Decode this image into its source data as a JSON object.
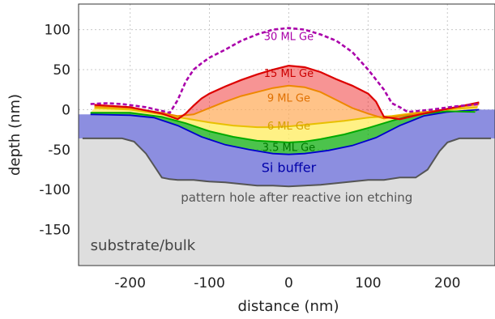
{
  "chart_data": {
    "type": "area",
    "xlabel": "distance (nm)",
    "ylabel": "depth (nm)",
    "xlim": [
      -265,
      260
    ],
    "ylim": [
      -195,
      132
    ],
    "xticks": [
      -200,
      -100,
      0,
      100,
      200
    ],
    "yticks": [
      100,
      50,
      0,
      -50,
      -100,
      -150
    ],
    "grid": true,
    "colors": {
      "substrate": "#dedede",
      "hole": "#555555",
      "si_buffer": "#8c8ee0",
      "ml35": "#00aa00",
      "ml6": "#ffee66",
      "ml9": "#ffaa55",
      "ml15": "#ee1111",
      "ml30": "#aa00aa"
    },
    "series": [
      {
        "name": "pattern hole after reactive ion etching",
        "x": [
          -260,
          -240,
          -210,
          -195,
          -180,
          -170,
          -160,
          -150,
          -140,
          -120,
          -100,
          -80,
          -60,
          -40,
          -20,
          0,
          20,
          40,
          60,
          80,
          100,
          120,
          140,
          160,
          175,
          190,
          200,
          215,
          240,
          255
        ],
        "y": [
          -36,
          -36,
          -36,
          -40,
          -55,
          -70,
          -85,
          -87,
          -88,
          -88,
          -90,
          -91,
          -93,
          -95,
          -95,
          -96,
          -95,
          -94,
          -92,
          -90,
          -88,
          -88,
          -85,
          -85,
          -75,
          -52,
          -41,
          -36,
          -36,
          -36
        ]
      },
      {
        "name": "Si buffer",
        "x": [
          -250,
          -200,
          -170,
          -140,
          -110,
          -80,
          -50,
          -20,
          0,
          20,
          50,
          80,
          110,
          140,
          170,
          200,
          240
        ],
        "y": [
          -6,
          -7,
          -10,
          -20,
          -34,
          -44,
          -50,
          -55,
          -56,
          -55,
          -51,
          -45,
          -35,
          -20,
          -8,
          -3,
          0
        ]
      },
      {
        "name": "3.5 ML Ge",
        "x": [
          -250,
          -200,
          -160,
          -130,
          -100,
          -70,
          -40,
          -20,
          0,
          20,
          40,
          70,
          100,
          130,
          160,
          200,
          235
        ],
        "y": [
          -4,
          -4,
          -9,
          -17,
          -27,
          -34,
          -39,
          -40,
          -41,
          -40,
          -37,
          -31,
          -23,
          -14,
          -6,
          -2,
          -3
        ]
      },
      {
        "name": "6 ML Ge",
        "x": [
          -245,
          -200,
          -160,
          -130,
          -100,
          -70,
          -40,
          -20,
          0,
          20,
          40,
          70,
          100,
          130,
          160,
          200,
          238
        ],
        "y": [
          2,
          0,
          -6,
          -11,
          -16,
          -20,
          -22,
          -22,
          -21,
          -19,
          -17,
          -14,
          -10,
          -8,
          -4,
          0,
          3
        ]
      },
      {
        "name": "9 ML Ge",
        "x": [
          -245,
          -200,
          -160,
          -140,
          -120,
          -100,
          -80,
          -60,
          -40,
          -20,
          0,
          20,
          40,
          60,
          80,
          100,
          120,
          140,
          170,
          200,
          240
        ],
        "y": [
          4,
          2,
          -4,
          -8,
          -6,
          2,
          10,
          17,
          22,
          27,
          30,
          28,
          22,
          12,
          2,
          -5,
          -11,
          -8,
          -4,
          1,
          7
        ]
      },
      {
        "name": "15 ML Ge",
        "x": [
          -245,
          -200,
          -160,
          -140,
          -130,
          -120,
          -110,
          -100,
          -80,
          -60,
          -40,
          -20,
          0,
          20,
          40,
          60,
          80,
          100,
          110,
          120,
          140,
          170,
          200,
          240
        ],
        "y": [
          6,
          3,
          -5,
          -12,
          -5,
          5,
          14,
          20,
          29,
          37,
          44,
          50,
          55,
          53,
          47,
          38,
          30,
          20,
          10,
          -9,
          -12,
          -5,
          1,
          9
        ]
      },
      {
        "name": "30 ML Ge",
        "x": [
          -250,
          -230,
          -210,
          -180,
          -150,
          -140,
          -130,
          -120,
          -110,
          -100,
          -80,
          -60,
          -40,
          -20,
          0,
          20,
          40,
          60,
          80,
          100,
          120,
          130,
          140,
          150,
          180,
          210,
          240
        ],
        "y": [
          7,
          8,
          7,
          3,
          -4,
          12,
          35,
          50,
          58,
          65,
          75,
          86,
          94,
          100,
          102,
          100,
          94,
          86,
          72,
          50,
          25,
          8,
          3,
          -3,
          0,
          4,
          7
        ]
      }
    ],
    "annotations": [
      {
        "text": "30 ML Ge",
        "x": 0,
        "y": 87,
        "color": "#aa00aa",
        "size": 13
      },
      {
        "text": "15 ML Ge",
        "x": 0,
        "y": 41,
        "color": "#cc0000",
        "size": 13
      },
      {
        "text": "9 ML Ge",
        "x": 0,
        "y": 10,
        "color": "#e07000",
        "size": 13
      },
      {
        "text": "6 ML Ge",
        "x": 0,
        "y": -25,
        "color": "#d8a000",
        "size": 13
      },
      {
        "text": "3.5 ML Ge",
        "x": 0,
        "y": -52,
        "color": "#007700",
        "size": 13
      },
      {
        "text": "Si buffer",
        "x": 0,
        "y": -78,
        "color": "#0000aa",
        "size": 16
      },
      {
        "text": "pattern hole after reactive ion etching",
        "x": 10,
        "y": -115,
        "color": "#555555",
        "size": 15
      },
      {
        "text": "substrate/bulk",
        "x": -250,
        "y": -176,
        "color": "#444444",
        "size": 18,
        "anchor": "start"
      }
    ]
  }
}
